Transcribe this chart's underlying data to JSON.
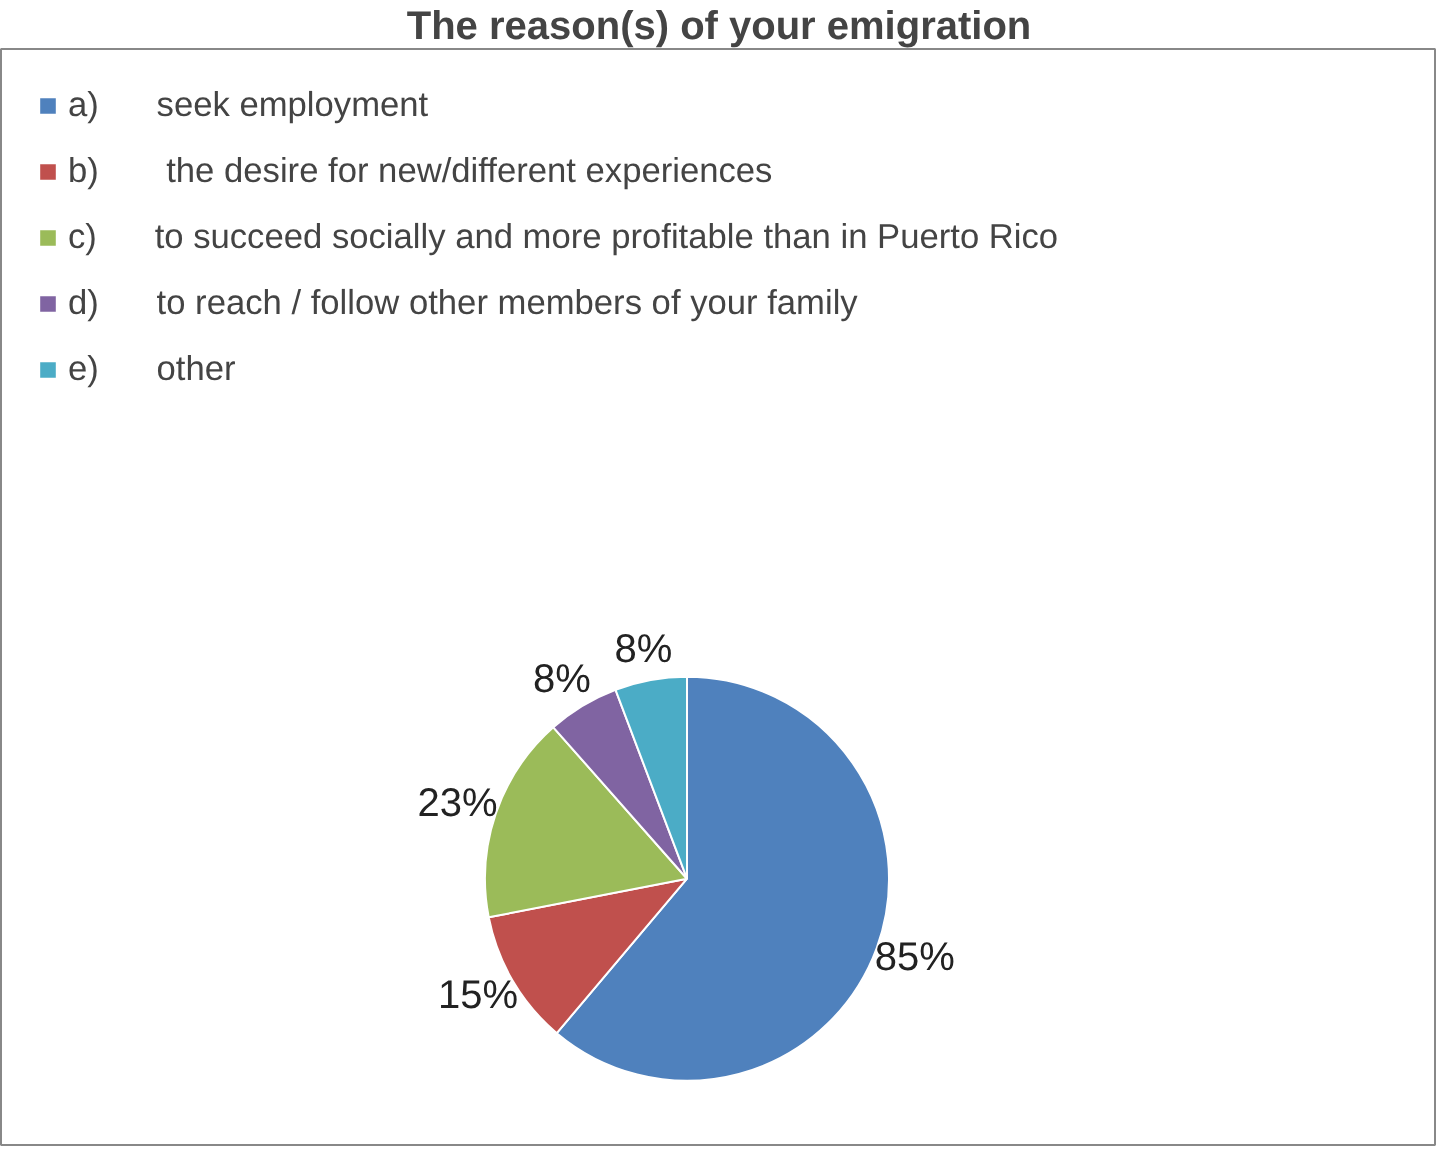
{
  "chart_data": {
    "type": "pie",
    "title": "The reason(s) of your emigration",
    "categories": [
      "a)      seek employment",
      "b)       the desire for new/different experiences",
      "c)      to succeed socially and more profitable than in Puerto Rico",
      "d)      to reach / follow other members of your family",
      "e)      other"
    ],
    "values": [
      85,
      15,
      23,
      8,
      8
    ],
    "colors": [
      "#4f81bd",
      "#c0504d",
      "#9bbb59",
      "#8064a2",
      "#4bacc6"
    ],
    "value_labels": [
      "85%",
      "15%",
      "23%",
      "8%",
      "8%"
    ],
    "legend": "top left"
  }
}
